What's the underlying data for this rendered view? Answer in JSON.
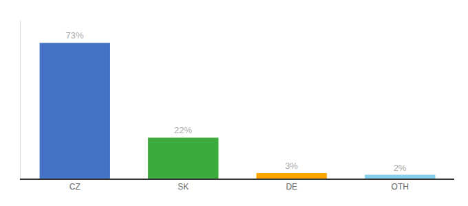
{
  "chart_data": {
    "type": "bar",
    "categories": [
      "CZ",
      "SK",
      "DE",
      "OTH"
    ],
    "values": [
      73,
      22,
      3,
      2
    ],
    "value_labels": [
      "73%",
      "22%",
      "3%",
      "2%"
    ],
    "colors": [
      "#4472C4",
      "#3DAA3D",
      "#FFA500",
      "#87CEEB"
    ],
    "ylim": [
      0,
      85
    ],
    "grid": false,
    "data_labels": true,
    "tick_labels": "x"
  }
}
